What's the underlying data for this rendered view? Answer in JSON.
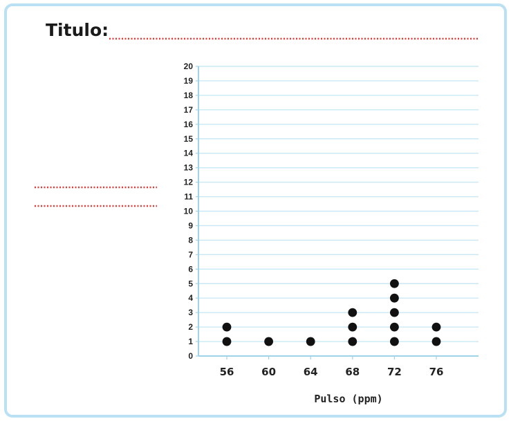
{
  "worksheet": {
    "title_prompt": "Titulo:"
  },
  "colors": {
    "frame_border": "#b9e1f3",
    "grid_line": "#c9e8f5",
    "axis_line": "#9fd3ea",
    "dot": "#111111",
    "answer_line": "#e53935"
  },
  "chart_data": {
    "type": "scatter",
    "style": "dot plot",
    "title": "",
    "xlabel": "Pulso (ppm)",
    "ylabel": "",
    "x_ticks": [
      56,
      60,
      64,
      68,
      72,
      76
    ],
    "y_ticks": [
      0,
      1,
      2,
      3,
      4,
      5,
      6,
      7,
      8,
      9,
      10,
      11,
      12,
      13,
      14,
      15,
      16,
      17,
      18,
      19,
      20
    ],
    "ylim": [
      0,
      20
    ],
    "grid": true,
    "legend": "none",
    "series": [
      {
        "points": [
          {
            "x": 56,
            "y": 1
          },
          {
            "x": 56,
            "y": 2
          },
          {
            "x": 60,
            "y": 1
          },
          {
            "x": 64,
            "y": 1
          },
          {
            "x": 68,
            "y": 1
          },
          {
            "x": 68,
            "y": 2
          },
          {
            "x": 68,
            "y": 3
          },
          {
            "x": 72,
            "y": 1
          },
          {
            "x": 72,
            "y": 2
          },
          {
            "x": 72,
            "y": 3
          },
          {
            "x": 72,
            "y": 4
          },
          {
            "x": 72,
            "y": 5
          },
          {
            "x": 76,
            "y": 1
          },
          {
            "x": 76,
            "y": 2
          }
        ]
      }
    ]
  }
}
